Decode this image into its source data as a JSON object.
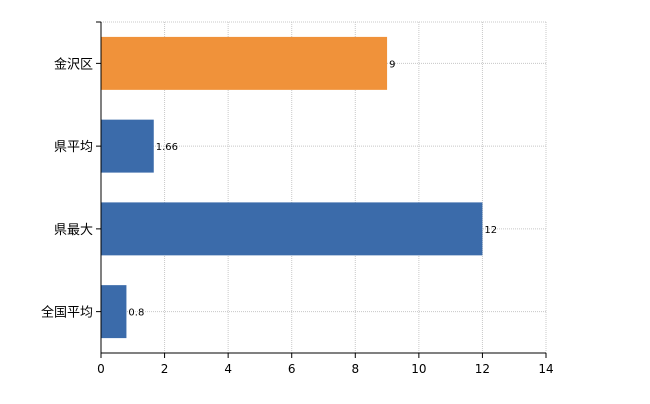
{
  "chart_data": {
    "type": "bar",
    "orientation": "horizontal",
    "categories": [
      "金沢区",
      "県平均",
      "県最大",
      "全国平均"
    ],
    "values": [
      9,
      1.66,
      12,
      0.8
    ],
    "data_labels": [
      "9",
      "1.66",
      "12",
      "0.8"
    ],
    "bar_colors": [
      "#F0923A",
      "#3B6BAA",
      "#3B6BAA",
      "#3B6BAA"
    ],
    "xlim": [
      0,
      14
    ],
    "x_ticks": [
      0,
      2,
      4,
      6,
      8,
      10,
      12,
      14
    ],
    "grid": true,
    "grid_style": "dotted",
    "title": "",
    "xlabel": "",
    "ylabel": ""
  }
}
